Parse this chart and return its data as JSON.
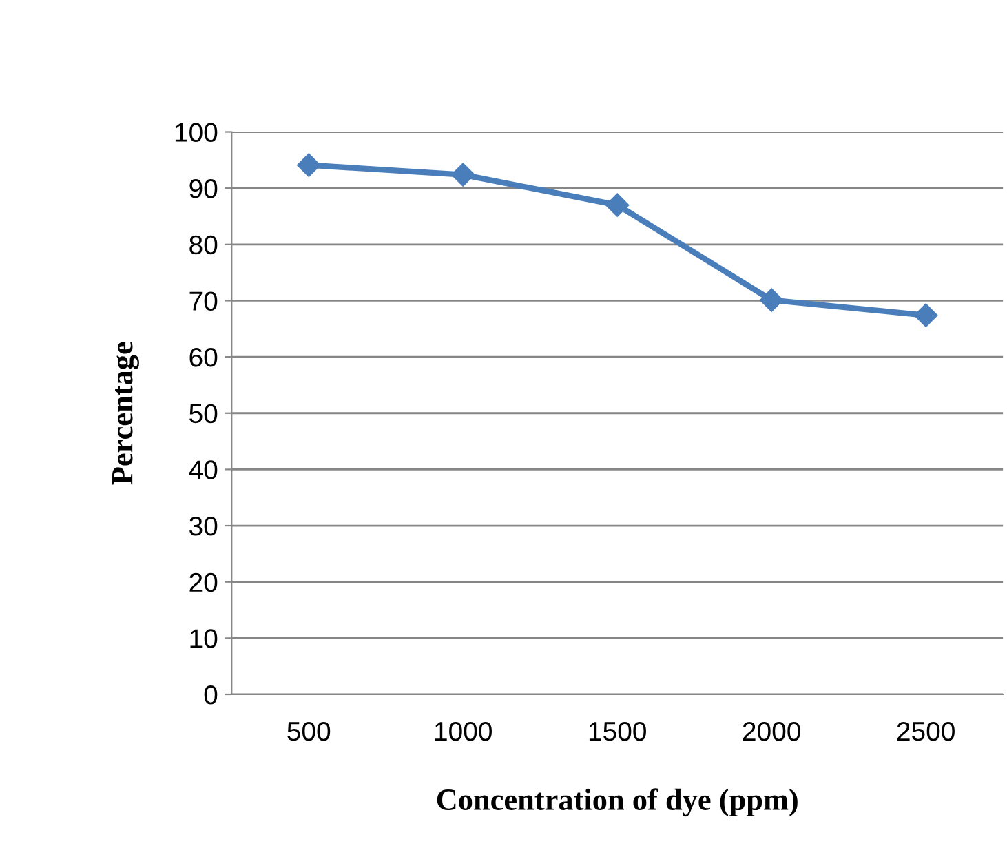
{
  "chart_data": {
    "type": "line",
    "xlabel": "Concentration of dye (ppm)",
    "ylabel": "Percentage",
    "categories": [
      "500",
      "1000",
      "1500",
      "2000",
      "2500"
    ],
    "series": [
      {
        "color": "#4a7ebb",
        "values": [
          94.1,
          92.4,
          87.0,
          70.1,
          67.4
        ]
      }
    ],
    "ylim": [
      0,
      100
    ],
    "yticks": [
      0,
      10,
      20,
      30,
      40,
      50,
      60,
      70,
      80,
      90,
      100
    ],
    "grid": "y",
    "marker": "diamond",
    "line_style": "solid"
  }
}
